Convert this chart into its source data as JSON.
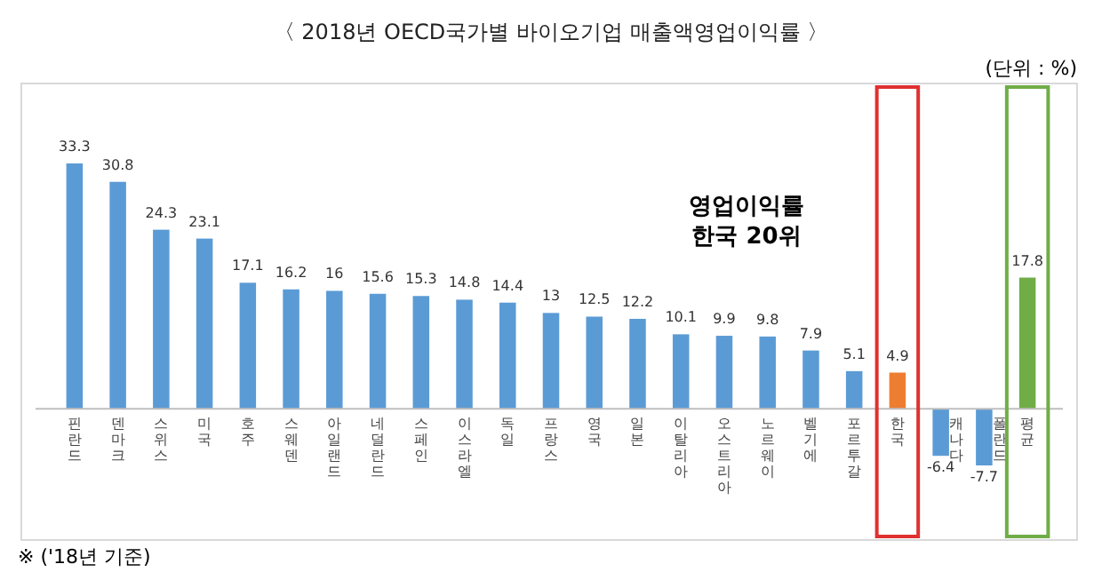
{
  "chart_data": {
    "type": "bar",
    "title": "〈 2018년 OECD국가별 바이오기업 매출액영업이익률 〉",
    "categories": [
      "핀란드",
      "덴마크",
      "스위스",
      "미국",
      "호주",
      "스웨덴",
      "아일랜드",
      "네덜란드",
      "스페인",
      "이스라엘",
      "독일",
      "프랑스",
      "영국",
      "일본",
      "이탈리아",
      "오스트리아",
      "노르웨이",
      "벨기에",
      "포르투갈",
      "한국",
      "캐나다",
      "폴란드",
      "평균"
    ],
    "values": [
      33.3,
      30.8,
      24.3,
      23.1,
      17.1,
      16.2,
      16.0,
      15.6,
      15.3,
      14.8,
      14.4,
      13.0,
      12.5,
      12.2,
      10.1,
      9.9,
      9.8,
      7.9,
      5.1,
      4.9,
      -6.4,
      -7.7,
      17.8
    ],
    "colors": [
      "#5b9bd5",
      "#5b9bd5",
      "#5b9bd5",
      "#5b9bd5",
      "#5b9bd5",
      "#5b9bd5",
      "#5b9bd5",
      "#5b9bd5",
      "#5b9bd5",
      "#5b9bd5",
      "#5b9bd5",
      "#5b9bd5",
      "#5b9bd5",
      "#5b9bd5",
      "#5b9bd5",
      "#5b9bd5",
      "#5b9bd5",
      "#5b9bd5",
      "#5b9bd5",
      "#ed7d31",
      "#5b9bd5",
      "#5b9bd5",
      "#70ad47"
    ],
    "data_labels": true,
    "annotations": [
      "(단위 : %)",
      "영업이익률\n한국 20위",
      "※ ('18년 기준)"
    ]
  }
}
